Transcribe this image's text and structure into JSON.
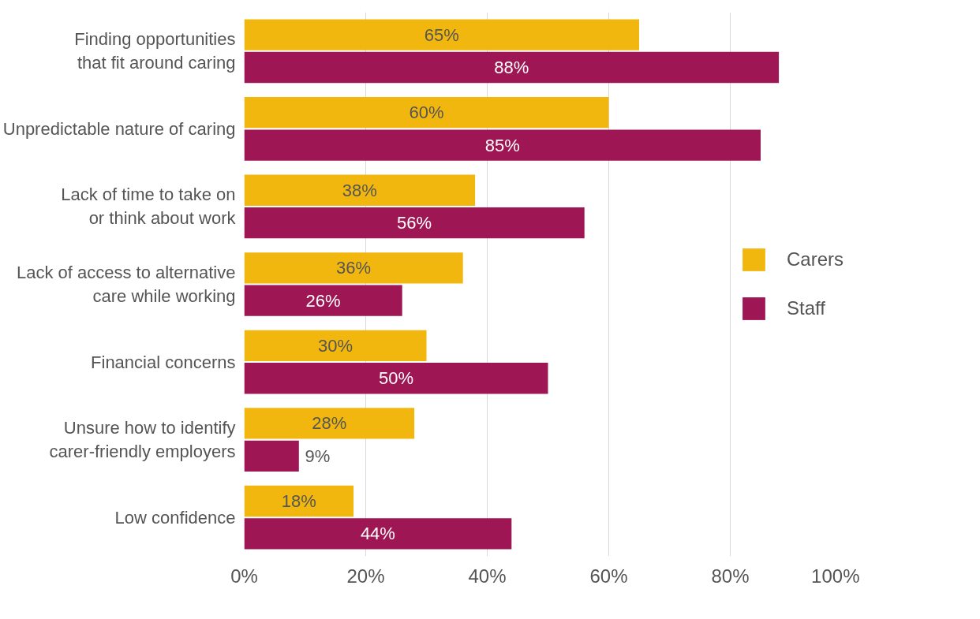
{
  "chart_data": {
    "type": "bar",
    "orientation": "horizontal",
    "categories": [
      "Finding opportunities\nthat fit around caring",
      "Unpredictable nature of caring",
      "Lack of time to take on\nor think about work",
      "Lack of access to alternative\ncare while working",
      "Financial concerns",
      "Unsure how to identify\ncarer-friendly employers",
      "Low confidence"
    ],
    "series": [
      {
        "name": "Carers",
        "color": "#f2b70f",
        "values": [
          65,
          60,
          38,
          36,
          30,
          28,
          18
        ],
        "value_labels": [
          "65%",
          "60%",
          "38%",
          "36%",
          "30%",
          "28%",
          "18%"
        ]
      },
      {
        "name": "Staff",
        "color": "#9e1653",
        "values": [
          88,
          85,
          56,
          26,
          50,
          9,
          44
        ],
        "value_labels": [
          "88%",
          "85%",
          "56%",
          "26%",
          "50%",
          "9%",
          "44%"
        ]
      }
    ],
    "xlim": [
      0,
      100
    ],
    "xticks": [
      {
        "value": 0,
        "label": "0%"
      },
      {
        "value": 20,
        "label": "20%"
      },
      {
        "value": 40,
        "label": "40%"
      },
      {
        "value": 60,
        "label": "60%"
      },
      {
        "value": 80,
        "label": "80%"
      },
      {
        "value": 100,
        "label": "100%"
      }
    ],
    "grid": "x",
    "legend": "right"
  }
}
